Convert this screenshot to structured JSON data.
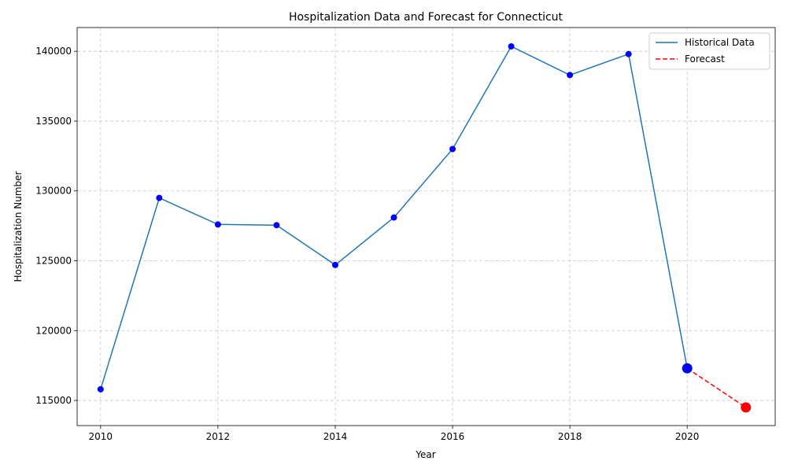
{
  "chart_data": {
    "type": "line",
    "title": "Hospitalization Data and Forecast for Connecticut",
    "xlabel": "Year",
    "ylabel": "Hospitalization Number",
    "xlim": [
      2009.6,
      2021.5
    ],
    "ylim": [
      113200,
      141700
    ],
    "xticks": [
      2010,
      2012,
      2014,
      2016,
      2018,
      2020
    ],
    "yticks": [
      115000,
      120000,
      125000,
      130000,
      135000,
      140000
    ],
    "grid": true,
    "legend_position": "top-right",
    "series": [
      {
        "name": "Historical Data",
        "style": "solid",
        "color": "#1f77b4",
        "marker_color": "#0000ff",
        "x": [
          2010,
          2011,
          2012,
          2013,
          2014,
          2015,
          2016,
          2017,
          2018,
          2019,
          2020
        ],
        "y": [
          115800,
          129500,
          127600,
          127550,
          124700,
          128100,
          133000,
          140350,
          138300,
          139800,
          117300
        ]
      },
      {
        "name": "Forecast",
        "style": "dashed",
        "color": "#ff0000",
        "marker_color": "#ff0000",
        "x": [
          2020,
          2021
        ],
        "y": [
          117300,
          114500
        ]
      }
    ]
  }
}
